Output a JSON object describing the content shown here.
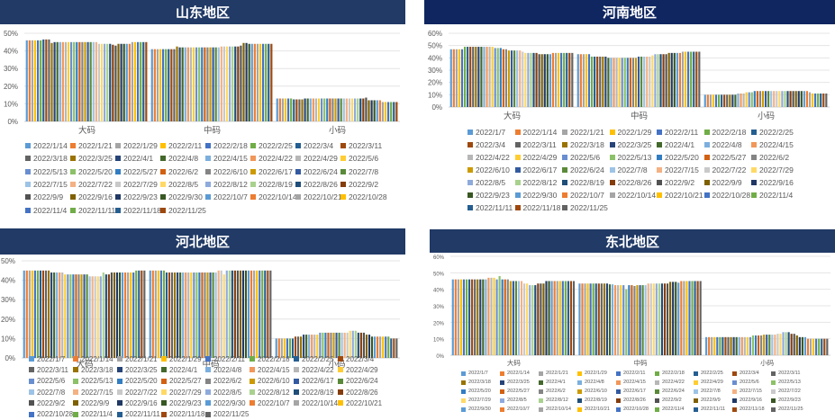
{
  "palette": [
    "#5B9BD5",
    "#ED7D31",
    "#A5A5A5",
    "#FFC000",
    "#4472C4",
    "#70AD47",
    "#255E91",
    "#9E480E",
    "#636363",
    "#997300",
    "#264478",
    "#43682B",
    "#7CAFDD",
    "#F1975A",
    "#B7B7B7",
    "#FFCD33",
    "#698ED0",
    "#8CC168",
    "#327DC2",
    "#D26012",
    "#848484",
    "#CC9A00",
    "#335AA1",
    "#5A8A39",
    "#9DC3E6",
    "#F4B183",
    "#C9C9C9",
    "#FFD966",
    "#8FAADC",
    "#A9D18E",
    "#1F4E79",
    "#843C0C",
    "#525252",
    "#7F6000",
    "#203864",
    "#385723"
  ],
  "chart_data": [
    {
      "type": "bar",
      "title": "山东地区",
      "categories": [
        "大码",
        "中码",
        "小码"
      ],
      "ylim": [
        0,
        50
      ],
      "yticks": [
        "0%",
        "10%",
        "20%",
        "30%",
        "40%",
        "50%"
      ],
      "grid": true,
      "legend": "bottom",
      "series_names": [
        "2022/1/14",
        "2022/1/21",
        "2022/1/29",
        "2022/2/11",
        "2022/2/18",
        "2022/2/25",
        "2022/3/4",
        "2022/3/11",
        "2022/3/18",
        "2022/3/25",
        "2022/4/1",
        "2022/4/8",
        "2022/4/15",
        "2022/4/22",
        "2022/4/29",
        "2022/5/6",
        "2022/5/13",
        "2022/5/20",
        "2022/5/27",
        "2022/6/2",
        "2022/6/10",
        "2022/6/17",
        "2022/6/24",
        "2022/7/8",
        "2022/7/15",
        "2022/7/22",
        "2022/7/29",
        "2022/8/5",
        "2022/8/12",
        "2022/8/19",
        "2022/8/26",
        "2022/9/2",
        "2022/9/9",
        "2022/9/16",
        "2022/9/23",
        "2022/9/30",
        "2022/10/7",
        "2022/10/14",
        "2022/10/21",
        "2022/10/28",
        "2022/11/4",
        "2022/11/11",
        "2022/11/18",
        "2022/11/25"
      ],
      "values": [
        [
          46,
          46,
          46,
          46,
          46,
          46,
          46.5,
          46.5,
          46.5,
          44.5,
          45,
          45,
          45,
          45,
          45,
          45,
          45,
          45,
          45,
          45,
          45,
          45,
          45,
          45,
          45,
          45,
          44,
          44,
          44,
          44,
          44,
          43.5,
          43,
          44,
          44,
          44,
          44,
          44,
          45,
          45,
          45,
          45,
          45,
          45
        ],
        [
          41,
          41,
          41,
          41,
          41,
          41,
          41,
          41,
          41,
          42.5,
          42,
          42,
          42,
          42,
          42,
          42,
          42,
          42,
          42,
          42,
          42,
          42,
          42,
          42,
          42,
          42.5,
          42.5,
          42.5,
          42.5,
          42.5,
          42.5,
          42.5,
          43,
          44.5,
          44.5,
          44,
          44,
          44,
          44,
          44,
          44,
          44,
          44,
          44
        ],
        [
          13,
          13,
          13,
          13,
          13,
          13,
          12.5,
          12.5,
          12.5,
          12.5,
          13,
          13,
          13,
          13,
          13,
          13,
          13,
          13,
          13,
          13,
          13,
          13,
          13,
          13,
          13,
          13,
          13,
          13,
          13,
          13,
          13,
          13,
          13.5,
          12,
          12,
          12,
          12,
          12,
          11,
          11,
          11,
          11,
          11,
          11
        ]
      ]
    },
    {
      "type": "bar",
      "title": "河南地区",
      "categories": [
        "大码",
        "中码",
        "小码"
      ],
      "ylim": [
        0,
        60
      ],
      "yticks": [
        "0%",
        "10%",
        "20%",
        "30%",
        "40%",
        "50%",
        "60%"
      ],
      "grid": true,
      "legend": "bottom",
      "series_names": [
        "2022/1/7",
        "2022/1/14",
        "2022/1/21",
        "2022/1/29",
        "2022/2/11",
        "2022/2/18",
        "2022/2/25",
        "2022/3/4",
        "2022/3/11",
        "2022/3/18",
        "2022/3/25",
        "2022/4/1",
        "2022/4/8",
        "2022/4/15",
        "2022/4/22",
        "2022/4/29",
        "2022/5/6",
        "2022/5/13",
        "2022/5/20",
        "2022/5/27",
        "2022/6/2",
        "2022/6/10",
        "2022/6/17",
        "2022/6/24",
        "2022/7/8",
        "2022/7/15",
        "2022/7/22",
        "2022/7/29",
        "2022/8/5",
        "2022/8/12",
        "2022/8/19",
        "2022/8/26",
        "2022/9/2",
        "2022/9/9",
        "2022/9/16",
        "2022/9/23",
        "2022/9/30",
        "2022/10/7",
        "2022/10/14",
        "2022/10/21",
        "2022/10/28",
        "2022/11/4",
        "2022/11/11",
        "2022/11/18",
        "2022/11/25"
      ],
      "values": [
        [
          47,
          47,
          47,
          47,
          47,
          49,
          49,
          49,
          49,
          49,
          49,
          49,
          49,
          49,
          49,
          49,
          48,
          48,
          48,
          47,
          47,
          46,
          46,
          46,
          46,
          46,
          45,
          44,
          44,
          44,
          44,
          44,
          43,
          43,
          43,
          43,
          43,
          44,
          44,
          44,
          44,
          44,
          44,
          44,
          44
        ],
        [
          43,
          43,
          43,
          43,
          43,
          41,
          41,
          41,
          41,
          41,
          41,
          40,
          40,
          40,
          40,
          40,
          40,
          40,
          40,
          40,
          40,
          40,
          41,
          41,
          41,
          41,
          41,
          42,
          43,
          43,
          43,
          43,
          43,
          44,
          44,
          44,
          44,
          44,
          45,
          45,
          45,
          45,
          45,
          45,
          45
        ],
        [
          10,
          10,
          10,
          10,
          10,
          10,
          10,
          10,
          10,
          10,
          10,
          10,
          11,
          11,
          11,
          12,
          12,
          12,
          13,
          13,
          13,
          13,
          13,
          13,
          13,
          13,
          13,
          13,
          13,
          13,
          13,
          13,
          13,
          13,
          13,
          13,
          13,
          13,
          12,
          11,
          11,
          11,
          11,
          11,
          11
        ]
      ]
    },
    {
      "type": "bar",
      "title": "河北地区",
      "categories": [
        "大码",
        "中码",
        "小码"
      ],
      "ylim": [
        0,
        50
      ],
      "yticks": [
        "0%",
        "10%",
        "20%",
        "30%",
        "40%",
        "50%"
      ],
      "grid": true,
      "legend": "bottom",
      "series_names": [
        "2022/1/7",
        "2022/1/14",
        "2022/1/21",
        "2022/1/29",
        "2022/2/11",
        "2022/2/18",
        "2022/2/25",
        "2022/3/4",
        "2022/3/11",
        "2022/3/18",
        "2022/3/25",
        "2022/4/1",
        "2022/4/8",
        "2022/4/15",
        "2022/4/22",
        "2022/4/29",
        "2022/5/6",
        "2022/5/13",
        "2022/5/20",
        "2022/5/27",
        "2022/6/2",
        "2022/6/10",
        "2022/6/17",
        "2022/6/24",
        "2022/7/8",
        "2022/7/15",
        "2022/7/22",
        "2022/7/29",
        "2022/8/5",
        "2022/8/12",
        "2022/8/19",
        "2022/8/26",
        "2022/9/2",
        "2022/9/9",
        "2022/9/16",
        "2022/9/23",
        "2022/9/30",
        "2022/10/7",
        "2022/10/14",
        "2022/10/21",
        "2022/10/28",
        "2022/11/4",
        "2022/11/11",
        "2022/11/18",
        "2022/11/25"
      ],
      "values": [
        [
          45,
          45,
          45,
          45,
          45,
          45,
          45,
          45,
          45,
          45,
          44,
          44,
          44,
          44,
          44,
          43,
          43,
          43,
          43,
          43,
          43,
          43,
          43,
          43,
          42,
          42,
          42,
          42,
          42,
          44,
          43,
          43,
          44,
          44,
          44,
          44,
          44,
          44,
          44,
          44,
          44,
          45,
          45,
          45,
          45
        ],
        [
          45,
          45,
          45,
          45,
          45,
          45,
          44,
          44,
          44,
          44,
          44,
          44,
          44,
          44,
          44,
          44,
          44,
          44,
          44,
          44,
          44,
          44,
          44,
          44,
          44,
          45,
          45,
          43,
          45,
          45,
          45,
          45,
          45,
          45,
          45,
          45,
          45,
          45,
          45,
          45,
          45,
          45,
          45,
          45,
          45
        ],
        [
          10,
          10,
          10,
          10,
          10,
          10,
          10,
          11,
          11,
          11,
          12,
          12,
          12,
          12,
          12,
          12,
          13,
          13,
          13,
          13,
          13,
          13,
          13,
          13,
          13,
          13,
          13,
          14,
          14,
          14,
          13,
          13,
          13,
          12,
          12,
          11,
          11,
          11,
          11,
          11,
          11,
          11,
          10,
          10,
          10
        ]
      ]
    },
    {
      "type": "bar",
      "title": "东北地区",
      "categories": [
        "大码",
        "中码",
        "小码"
      ],
      "ylim": [
        0,
        60
      ],
      "yticks": [
        "0%",
        "10%",
        "20%",
        "30%",
        "40%",
        "50%",
        "60%"
      ],
      "grid": true,
      "legend": "bottom",
      "series_names": [
        "2022/1/7",
        "2022/1/14",
        "2022/1/21",
        "2022/1/29",
        "2022/2/11",
        "2022/2/18",
        "2022/2/25",
        "2022/3/4",
        "2022/3/11",
        "2022/3/18",
        "2022/3/25",
        "2022/4/1",
        "2022/4/8",
        "2022/4/15",
        "2022/4/22",
        "2022/4/29",
        "2022/5/6",
        "2022/5/13",
        "2022/5/20",
        "2022/5/27",
        "2022/6/2",
        "2022/6/10",
        "2022/6/17",
        "2022/6/24",
        "2022/7/8",
        "2022/7/15",
        "2022/7/22",
        "2022/7/29",
        "2022/8/5",
        "2022/8/12",
        "2022/8/19",
        "2022/8/26",
        "2022/9/2",
        "2022/9/9",
        "2022/9/16",
        "2022/9/23",
        "2022/9/30",
        "2022/10/7",
        "2022/10/14",
        "2022/10/21",
        "2022/10/28",
        "2022/11/4",
        "2022/11/11",
        "2022/11/18",
        "2022/11/25"
      ],
      "values": [
        [
          46,
          46,
          46,
          46,
          46,
          46,
          46,
          46,
          46,
          46,
          46,
          46,
          46,
          47,
          47,
          47,
          46,
          48,
          46,
          46,
          46,
          45,
          45,
          45,
          45,
          45,
          43.5,
          43.5,
          42.5,
          42.5,
          42.5,
          43.5,
          43.5,
          43.5,
          45,
          45,
          45,
          45,
          45,
          45,
          45,
          45,
          45,
          45,
          45
        ],
        [
          43.5,
          43.5,
          43.5,
          43.5,
          43.5,
          43.5,
          43.5,
          43.5,
          43.5,
          43.5,
          43.5,
          43,
          43,
          42.5,
          42.5,
          42.5,
          42.5,
          40,
          42.5,
          42.5,
          42,
          42.5,
          42.5,
          42.5,
          42.5,
          43.5,
          43.5,
          43.5,
          43.5,
          43.5,
          43.5,
          43.5,
          43.5,
          44.5,
          44.5,
          44.5,
          44,
          45,
          45,
          45,
          45,
          45,
          45,
          45,
          45
        ],
        [
          11,
          11,
          11,
          11,
          11,
          11,
          11,
          11,
          11,
          11,
          11,
          11,
          11,
          11,
          11,
          11,
          11,
          12,
          12,
          12,
          12,
          12.5,
          12.5,
          12.5,
          12.5,
          12.5,
          13,
          13,
          14,
          14,
          14,
          13,
          13,
          12,
          11,
          11,
          11,
          10,
          10,
          10,
          10,
          10,
          10,
          10,
          10
        ]
      ]
    }
  ]
}
